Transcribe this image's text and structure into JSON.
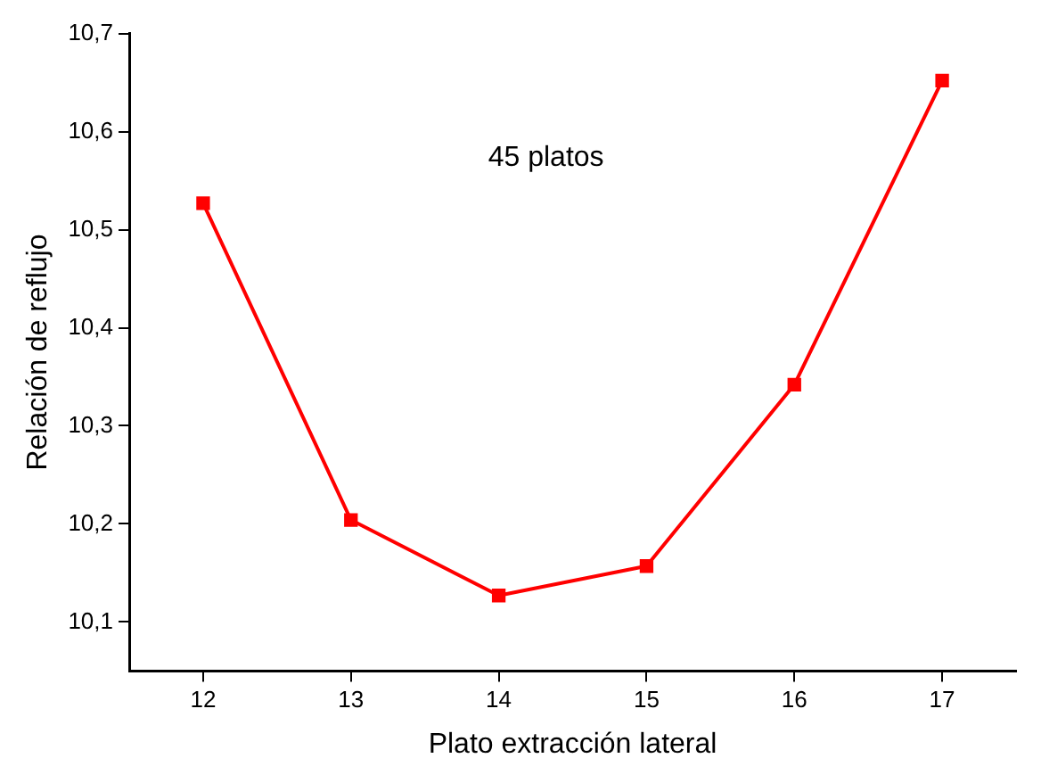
{
  "chart_data": {
    "type": "line",
    "xlabel": "Plato extracción lateral",
    "ylabel": "Relación de reflujo",
    "annotations": [
      "45 platos"
    ],
    "x": [
      12,
      13,
      14,
      15,
      16,
      17
    ],
    "series": [
      {
        "color": "#ff0000",
        "values": [
          10.527,
          10.204,
          10.127,
          10.157,
          10.342,
          10.652
        ]
      }
    ],
    "xlim": [
      11.5,
      17.5
    ],
    "xticks": [
      12,
      13,
      14,
      15,
      16,
      17
    ],
    "ylim": [
      10.05,
      10.7
    ],
    "yticks": [
      {
        "value": 10.1,
        "label": "10,1"
      },
      {
        "value": 10.2,
        "label": "10,2"
      },
      {
        "value": 10.3,
        "label": "10,3"
      },
      {
        "value": 10.4,
        "label": "10,4"
      },
      {
        "value": 10.5,
        "label": "10,5"
      },
      {
        "value": 10.6,
        "label": "10,6"
      },
      {
        "value": 10.7,
        "label": "10,7"
      }
    ],
    "grid": false,
    "legend": false,
    "marker": "square",
    "line_style": "solid"
  }
}
